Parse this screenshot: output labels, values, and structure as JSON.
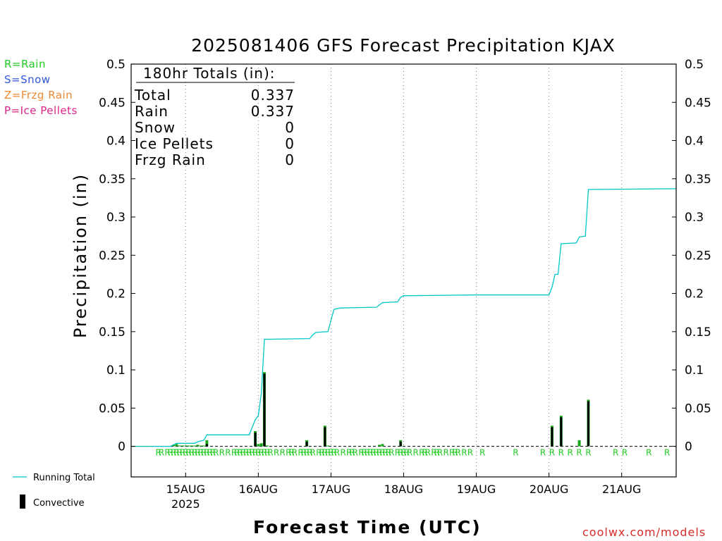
{
  "chart_data": {
    "type": "bar+line",
    "title": "2025081406 GFS Forecast Precipitation KJAX",
    "ylabel": "Precipitation (in)",
    "xlabel": "Forecast Time (UTC)",
    "ylim": [
      -0.04,
      0.5
    ],
    "yticks": [
      0,
      0.05,
      0.1,
      0.15,
      0.2,
      0.25,
      0.3,
      0.35,
      0.4,
      0.45,
      0.5
    ],
    "ytick_labels": [
      "0",
      "0.05",
      "0.1",
      "0.15",
      "0.2",
      "0.25",
      "0.3",
      "0.35",
      "0.4",
      "0.45",
      "0.5"
    ],
    "xlim_hours": [
      6,
      186
    ],
    "xticks": [
      {
        "hour": 24,
        "label": "15AUG",
        "sub": "2025"
      },
      {
        "hour": 48,
        "label": "16AUG",
        "sub": ""
      },
      {
        "hour": 72,
        "label": "17AUG",
        "sub": ""
      },
      {
        "hour": 96,
        "label": "18AUG",
        "sub": ""
      },
      {
        "hour": 120,
        "label": "19AUG",
        "sub": ""
      },
      {
        "hour": 144,
        "label": "20AUG",
        "sub": ""
      },
      {
        "hour": 168,
        "label": "21AUG",
        "sub": ""
      }
    ],
    "grid": "vertical dotted",
    "totals": {
      "header": "180hr Totals (in):",
      "rows": [
        {
          "label": "Total",
          "value": "0.337"
        },
        {
          "label": "Rain",
          "value": "0.337"
        },
        {
          "label": "Snow",
          "value": "0"
        },
        {
          "label": "Ice Pellets",
          "value": "0"
        },
        {
          "label": "Frzg Rain",
          "value": "0"
        }
      ]
    },
    "precip_types": [
      {
        "text": "R=Rain",
        "color": "#22cc22"
      },
      {
        "text": "S=Snow",
        "color": "#3355dd"
      },
      {
        "text": "Z=Frzg Rain",
        "color": "#ee8833"
      },
      {
        "text": "P=Ice Pellets",
        "color": "#dd2288"
      }
    ],
    "legend": [
      {
        "text": "Running Total",
        "color": "#00c8c8"
      },
      {
        "text": "Convective",
        "color": "#000000"
      }
    ],
    "running_total": [
      [
        6,
        0
      ],
      [
        19,
        0
      ],
      [
        20,
        0.002
      ],
      [
        21,
        0.004
      ],
      [
        27,
        0.004
      ],
      [
        28,
        0.006
      ],
      [
        29,
        0.007
      ],
      [
        30,
        0.008
      ],
      [
        31,
        0.015
      ],
      [
        45,
        0.015
      ],
      [
        46,
        0.025
      ],
      [
        47,
        0.035
      ],
      [
        48,
        0.04
      ],
      [
        49,
        0.07
      ],
      [
        50,
        0.14
      ],
      [
        65,
        0.141
      ],
      [
        66,
        0.146
      ],
      [
        67,
        0.149
      ],
      [
        71,
        0.15
      ],
      [
        72,
        0.165
      ],
      [
        73,
        0.179
      ],
      [
        75,
        0.181
      ],
      [
        87,
        0.182
      ],
      [
        89,
        0.188
      ],
      [
        94,
        0.189
      ],
      [
        95,
        0.195
      ],
      [
        96,
        0.197
      ],
      [
        120,
        0.198
      ],
      [
        144,
        0.198
      ],
      [
        145,
        0.208
      ],
      [
        146,
        0.225
      ],
      [
        147,
        0.225
      ],
      [
        148,
        0.265
      ],
      [
        153,
        0.266
      ],
      [
        154,
        0.274
      ],
      [
        156,
        0.275
      ],
      [
        157,
        0.336
      ],
      [
        186,
        0.337
      ]
    ],
    "bars": [
      [
        20,
        0.002
      ],
      [
        21,
        0.003
      ],
      [
        22,
        0.001
      ],
      [
        23,
        0.001
      ],
      [
        24,
        0.001
      ],
      [
        25,
        0.001
      ],
      [
        26,
        0.001
      ],
      [
        27,
        0.001
      ],
      [
        28,
        0.002
      ],
      [
        29,
        0.001
      ],
      [
        30,
        0.001
      ],
      [
        31,
        0.008
      ],
      [
        47,
        0.02
      ],
      [
        48,
        0.003
      ],
      [
        49,
        0.004
      ],
      [
        50,
        0.097
      ],
      [
        51,
        0.001
      ],
      [
        64,
        0.008
      ],
      [
        70,
        0.027
      ],
      [
        71,
        0.001
      ],
      [
        88,
        0.002
      ],
      [
        89,
        0.003
      ],
      [
        95,
        0.008
      ],
      [
        145,
        0.027
      ],
      [
        148,
        0.04
      ],
      [
        154,
        0.008
      ],
      [
        157,
        0.061
      ]
    ],
    "convective_bars": [
      [
        31,
        0.003
      ],
      [
        47,
        0.018
      ],
      [
        50,
        0.095
      ],
      [
        64,
        0.006
      ],
      [
        70,
        0.025
      ],
      [
        95,
        0.006
      ],
      [
        145,
        0.025
      ],
      [
        148,
        0.038
      ],
      [
        157,
        0.059
      ]
    ],
    "ptype_marks": {
      "letter": "R",
      "hours": [
        15,
        16,
        18,
        19,
        20,
        21,
        22,
        23,
        24,
        25,
        26,
        27,
        28,
        29,
        30,
        31,
        32,
        33,
        34,
        36,
        38,
        40,
        41,
        42,
        43,
        44,
        45,
        46,
        47,
        48,
        49,
        50,
        51,
        52,
        54,
        56,
        58,
        59,
        60,
        62,
        63,
        64,
        65,
        66,
        68,
        69,
        70,
        71,
        72,
        73,
        74,
        76,
        78,
        79,
        80,
        82,
        83,
        84,
        85,
        86,
        87,
        88,
        89,
        90,
        91,
        92,
        94,
        95,
        96,
        97,
        98,
        100,
        102,
        103,
        104,
        106,
        107,
        108,
        110,
        112,
        113,
        114,
        116,
        118,
        122,
        133,
        142,
        145,
        148,
        151,
        154,
        157,
        166,
        169,
        177,
        183
      ]
    }
  },
  "credit": "coolwx.com/models"
}
